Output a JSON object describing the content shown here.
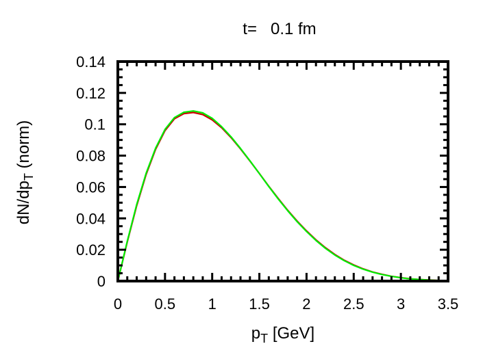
{
  "chart_data": {
    "type": "line",
    "title": "t=   0.1 fm",
    "xlabel": {
      "main": "p",
      "sub": "T",
      "rest": " [GeV]"
    },
    "ylabel": {
      "main": "dN/dp",
      "sub": "T",
      "rest": " (norm)"
    },
    "xlim": [
      0,
      3.5
    ],
    "ylim": [
      0,
      0.14
    ],
    "xticks": [
      "0",
      "0.5",
      "1",
      "1.5",
      "2",
      "2.5",
      "3",
      "3.5"
    ],
    "yticks": [
      "0",
      "0.02",
      "0.04",
      "0.06",
      "0.08",
      "0.1",
      "0.12",
      "0.14"
    ],
    "grid": false,
    "legend": "none",
    "x": [
      0,
      0.1,
      0.2,
      0.3,
      0.4,
      0.5,
      0.6,
      0.7,
      0.8,
      0.9,
      1.0,
      1.1,
      1.2,
      1.3,
      1.4,
      1.5,
      1.6,
      1.7,
      1.8,
      1.9,
      2.0,
      2.1,
      2.2,
      2.3,
      2.4,
      2.5,
      2.6,
      2.7,
      2.8,
      2.9,
      3.0,
      3.1,
      3.2,
      3.3,
      3.4,
      3.5
    ],
    "series": [
      {
        "color": "#cc0000",
        "values": [
          0.0,
          0.025,
          0.048,
          0.068,
          0.084,
          0.096,
          0.1035,
          0.1068,
          0.1075,
          0.1062,
          0.1028,
          0.0978,
          0.0915,
          0.0843,
          0.0766,
          0.0686,
          0.0605,
          0.0527,
          0.0452,
          0.0383,
          0.032,
          0.0263,
          0.0213,
          0.017,
          0.0133,
          0.0103,
          0.0078,
          0.0058,
          0.0043,
          0.0031,
          0.0022,
          0.0015,
          0.001,
          0.0007,
          0.0004,
          0.0003
        ]
      },
      {
        "color": "#00ee00",
        "values": [
          0.0,
          0.0255,
          0.0488,
          0.0688,
          0.0848,
          0.0968,
          0.1043,
          0.1077,
          0.1085,
          0.1073,
          0.1038,
          0.0985,
          0.092,
          0.0846,
          0.0767,
          0.0685,
          0.0603,
          0.0524,
          0.0449,
          0.0379,
          0.0316,
          0.0259,
          0.0209,
          0.0166,
          0.013,
          0.01,
          0.0076,
          0.0057,
          0.0042,
          0.003,
          0.0021,
          0.0014,
          0.001,
          0.0006,
          0.0004,
          0.0002
        ]
      }
    ]
  }
}
